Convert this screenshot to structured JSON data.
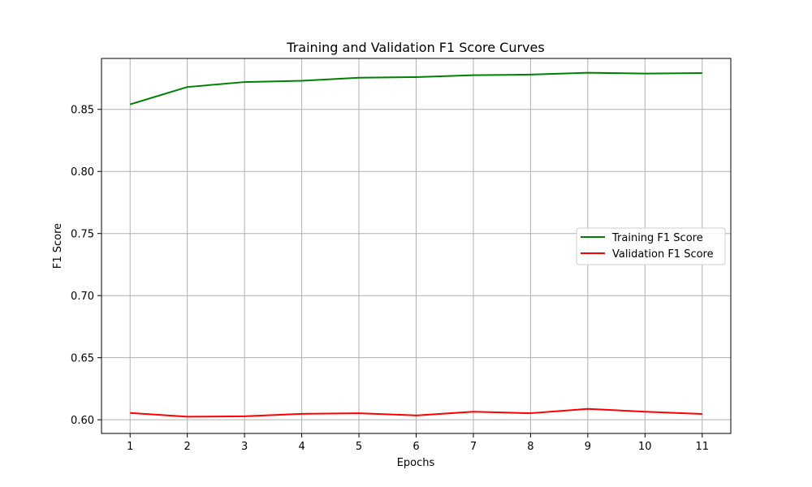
{
  "chart_data": {
    "type": "line",
    "title": "Training and Validation F1 Score Curves",
    "xlabel": "Epochs",
    "ylabel": "F1 Score",
    "x": [
      1,
      2,
      3,
      4,
      5,
      6,
      7,
      8,
      9,
      10,
      11
    ],
    "xticks": [
      "1",
      "2",
      "3",
      "4",
      "5",
      "6",
      "7",
      "8",
      "9",
      "10",
      "11"
    ],
    "yticks": [
      "0.60",
      "0.65",
      "0.70",
      "0.75",
      "0.80",
      "0.85"
    ],
    "ytick_values": [
      0.6,
      0.65,
      0.7,
      0.75,
      0.8,
      0.85
    ],
    "xlim": [
      0.5,
      11.5
    ],
    "ylim": [
      0.589,
      0.891
    ],
    "grid": true,
    "legend_position": "center-right",
    "series": [
      {
        "name": "Training F1 Score",
        "color": "#008000",
        "values": [
          0.854,
          0.868,
          0.872,
          0.873,
          0.8755,
          0.876,
          0.8775,
          0.878,
          0.8795,
          0.8788,
          0.8792
        ]
      },
      {
        "name": "Validation F1 Score",
        "color": "#ff0000",
        "values": [
          0.6055,
          0.6025,
          0.6028,
          0.6048,
          0.6053,
          0.6035,
          0.6065,
          0.6053,
          0.6088,
          0.6065,
          0.6047
        ]
      }
    ]
  }
}
